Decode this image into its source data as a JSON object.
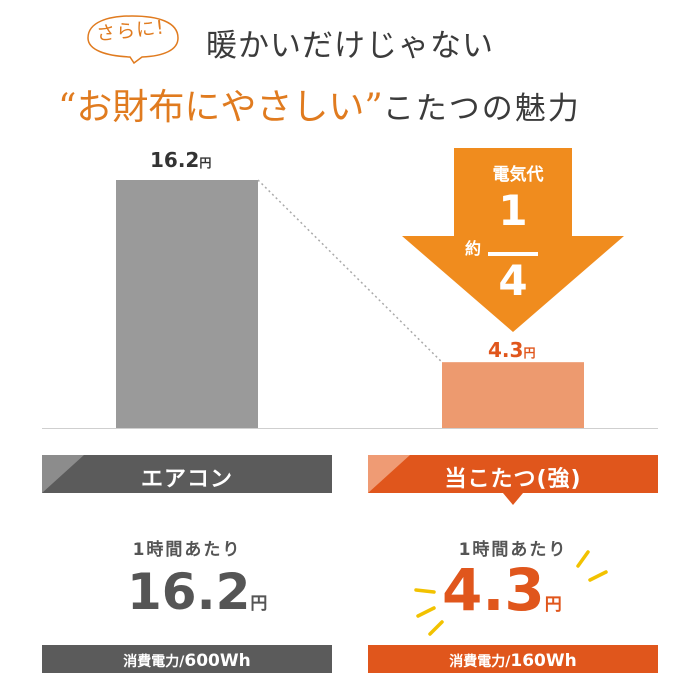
{
  "header": {
    "badge": "さらに!",
    "line1": "暖かいだけじゃない",
    "line2_quote": "“お財布にやさしい”",
    "line2_rest": "こたつの魅力",
    "colors": {
      "accent": "#e07b1f",
      "text": "#3b3b3b"
    }
  },
  "chart_data": {
    "type": "bar",
    "categories": [
      "エアコン",
      "当こたつ(強)"
    ],
    "values": [
      16.2,
      4.3
    ],
    "unit": "円",
    "value_labels": [
      "16.2",
      "4.3"
    ],
    "title": "",
    "xlabel": "",
    "ylabel": "",
    "ylim": [
      0,
      16.2
    ],
    "bar_colors": [
      "#9a9a9a",
      "#ed9a6f"
    ],
    "grid": false,
    "legend": "none"
  },
  "arrow": {
    "title": "電気代",
    "approx": "約",
    "numerator": "1",
    "denominator": "4",
    "color": "#f08c1e"
  },
  "cards": [
    {
      "label": "エアコン",
      "per_hour": "1時間あたり",
      "value": "16.2",
      "unit": "円",
      "power_label": "消費電力/",
      "power_value": "600Wh",
      "color": "#5b5b5b"
    },
    {
      "label": "当こたつ(強)",
      "per_hour": "1時間あたり",
      "value": "4.3",
      "unit": "円",
      "power_label": "消費電力/",
      "power_value": "160Wh",
      "color": "#e0561c"
    }
  ]
}
